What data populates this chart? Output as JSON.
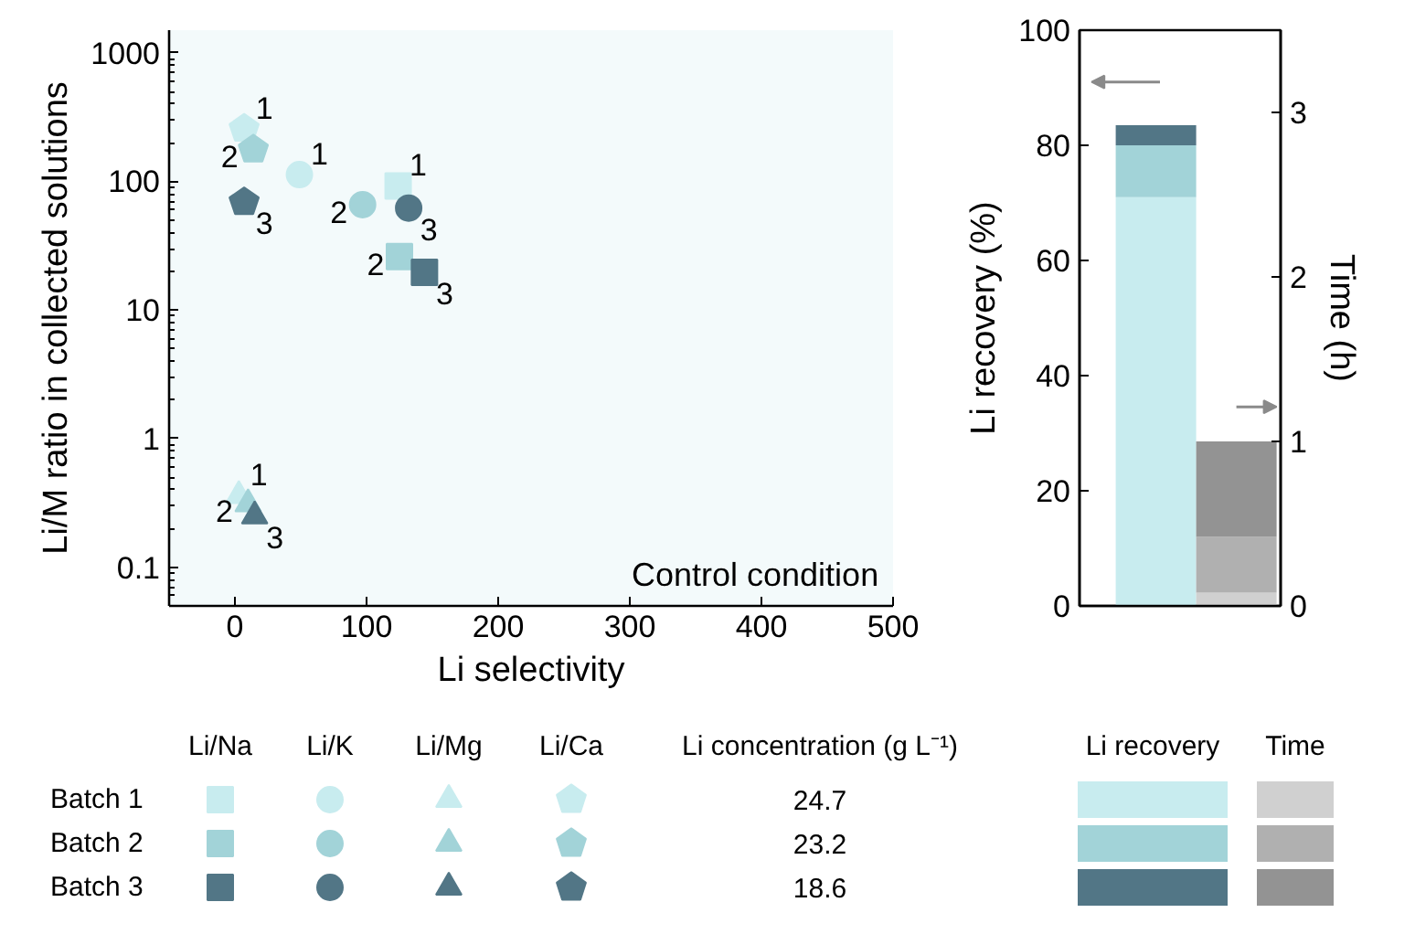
{
  "chart_data": [
    {
      "type": "scatter",
      "xlabel": "Li selectivity",
      "ylabel": "Li/M ratio in collected solutions",
      "log": "y",
      "grid": false,
      "xlim": [
        -50,
        500
      ],
      "xticks": [
        0,
        100,
        200,
        300,
        400,
        500
      ],
      "ylim": [
        0.05,
        1500
      ],
      "yticks": [
        0.1,
        1,
        10,
        100,
        1000
      ],
      "series": [
        {
          "marker": "square",
          "color": "#c8ecef",
          "x": [
            124
          ],
          "values": [
            92
          ]
        },
        {
          "marker": "square",
          "color": "#a2d3d8",
          "x": [
            125
          ],
          "values": [
            26
          ]
        },
        {
          "marker": "square",
          "color": "#527686",
          "x": [
            144
          ],
          "values": [
            19.6
          ]
        },
        {
          "marker": "circle",
          "color": "#c8ecef",
          "x": [
            49
          ],
          "values": [
            113
          ]
        },
        {
          "marker": "circle",
          "color": "#a2d3d8",
          "x": [
            97
          ],
          "values": [
            66
          ]
        },
        {
          "marker": "circle",
          "color": "#527686",
          "x": [
            132
          ],
          "values": [
            62
          ]
        },
        {
          "marker": "triangle",
          "color": "#c8ecef",
          "x": [
            3
          ],
          "values": [
            0.36
          ]
        },
        {
          "marker": "triangle",
          "color": "#a2d3d8",
          "x": [
            10
          ],
          "values": [
            0.31
          ]
        },
        {
          "marker": "triangle",
          "color": "#527686",
          "x": [
            15
          ],
          "values": [
            0.25
          ]
        },
        {
          "color": "#c8ecef",
          "x": [
            7
          ],
          "values": [
            257
          ]
        },
        {
          "color": "#a2d3d8",
          "x": [
            14
          ],
          "values": [
            177
          ]
        },
        {
          "color": "#527686",
          "x": [
            7
          ],
          "values": [
            69
          ]
        }
      ],
      "annotations": [
        "Control condition",
        "Li/Na",
        "Li/K",
        "Li/Mg",
        "Li/Ca",
        {
          "text": "1",
          "x": 124,
          "y": 92
        },
        {
          "text": "2",
          "x": 125,
          "y": 26
        },
        {
          "text": "3",
          "x": 144,
          "y": 19.6
        },
        {
          "text": "1",
          "x": 49,
          "y": 113
        },
        {
          "text": "2",
          "x": 97,
          "y": 66
        },
        {
          "text": "3",
          "x": 132,
          "y": 62
        },
        {
          "text": "1",
          "x": 3,
          "y": 0.36
        },
        {
          "text": "2",
          "x": 10,
          "y": 0.31
        },
        {
          "text": "3",
          "x": 15,
          "y": 0.25
        },
        {
          "text": "1",
          "x": 7,
          "y": 257
        },
        {
          "text": "2",
          "x": 14,
          "y": 177
        },
        {
          "text": "3",
          "x": 7,
          "y": 69
        }
      ]
    },
    {
      "type": "bar",
      "stacked": true,
      "categories": [
        null,
        null
      ],
      "ylabel": "Li recovery (%)",
      "y2label": "Time (h)",
      "grid": false,
      "ylim": [
        0,
        100
      ],
      "yticks": [
        0,
        20,
        40,
        60,
        80,
        100
      ],
      "y2lim": [
        0,
        3.5
      ],
      "y2ticks": [
        0,
        1,
        2,
        3
      ],
      "annotations": [
        "Li recovery",
        "Time"
      ],
      "series": [
        {
          "color": "#c8ecef",
          "values": [
            71,
            null
          ]
        },
        {
          "color": "#a2d3d8",
          "values": [
            9,
            null
          ]
        },
        {
          "color": "#527686",
          "values": [
            3.5,
            null
          ]
        },
        {
          "color": "#d0d0d0",
          "axis": "y2",
          "values": [
            null,
            0.08
          ]
        },
        {
          "color": "#b0b0b0",
          "axis": "y2",
          "values": [
            null,
            0.34
          ]
        },
        {
          "color": "#939393",
          "axis": "y2",
          "values": [
            null,
            0.58
          ]
        }
      ]
    },
    {
      "type": "other",
      "categories": [
        "Batch 1",
        "Batch 2",
        "Batch 3"
      ],
      "data_labels": true,
      "series": [
        {
          "name": "Li concentration (g L⁻¹)",
          "values": [
            24.7,
            23.2,
            18.6
          ]
        }
      ]
    }
  ]
}
